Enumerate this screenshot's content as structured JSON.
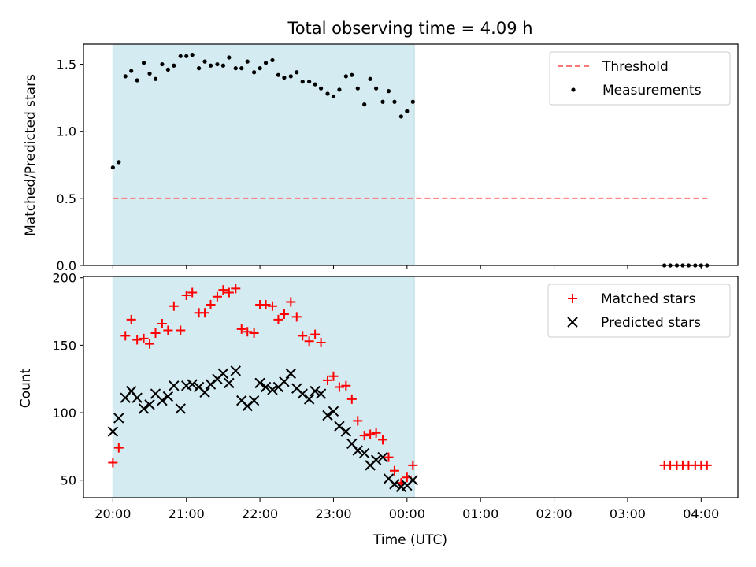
{
  "chart_data": {
    "type": "scatter",
    "title": "Total observing time = 4.09 h",
    "xlabel": "Time (UTC)",
    "x_ticks": [
      "20:00",
      "21:00",
      "22:00",
      "23:00",
      "00:00",
      "01:00",
      "02:00",
      "03:00",
      "04:00"
    ],
    "x_range_hours": [
      19.6,
      28.5
    ],
    "observing_window_hours": [
      20.0,
      24.1
    ],
    "colors": {
      "window": "#d4ebf1",
      "threshold": "#ff7777",
      "matched": "#ff0000",
      "predicted": "#000000",
      "measurement": "#000000"
    },
    "panels": [
      {
        "ylabel": "Matched/Predicted stars",
        "ylim": [
          0,
          1.65
        ],
        "yticks": [
          "0.0",
          "0.5",
          "1.0",
          "1.5"
        ],
        "threshold": 0.5,
        "threshold_x": [
          20.0,
          28.1
        ],
        "legend": {
          "position": "top-right",
          "threshold_label": "Threshold",
          "measurements_label": "Measurements"
        },
        "measurements": [
          [
            20.0,
            0.73
          ],
          [
            20.08,
            0.77
          ],
          [
            20.17,
            1.41
          ],
          [
            20.25,
            1.45
          ],
          [
            20.33,
            1.38
          ],
          [
            20.42,
            1.51
          ],
          [
            20.5,
            1.43
          ],
          [
            20.58,
            1.39
          ],
          [
            20.67,
            1.5
          ],
          [
            20.75,
            1.46
          ],
          [
            20.83,
            1.49
          ],
          [
            20.92,
            1.56
          ],
          [
            21.0,
            1.56
          ],
          [
            21.08,
            1.57
          ],
          [
            21.17,
            1.47
          ],
          [
            21.25,
            1.52
          ],
          [
            21.33,
            1.49
          ],
          [
            21.42,
            1.5
          ],
          [
            21.5,
            1.49
          ],
          [
            21.58,
            1.55
          ],
          [
            21.67,
            1.47
          ],
          [
            21.75,
            1.47
          ],
          [
            21.83,
            1.52
          ],
          [
            21.92,
            1.44
          ],
          [
            22.0,
            1.47
          ],
          [
            22.08,
            1.51
          ],
          [
            22.17,
            1.53
          ],
          [
            22.25,
            1.42
          ],
          [
            22.33,
            1.4
          ],
          [
            22.42,
            1.41
          ],
          [
            22.5,
            1.44
          ],
          [
            22.58,
            1.37
          ],
          [
            22.67,
            1.37
          ],
          [
            22.75,
            1.35
          ],
          [
            22.83,
            1.32
          ],
          [
            22.92,
            1.28
          ],
          [
            23.0,
            1.26
          ],
          [
            23.08,
            1.31
          ],
          [
            23.17,
            1.41
          ],
          [
            23.25,
            1.42
          ],
          [
            23.33,
            1.32
          ],
          [
            23.42,
            1.2
          ],
          [
            23.5,
            1.39
          ],
          [
            23.58,
            1.32
          ],
          [
            23.67,
            1.22
          ],
          [
            23.75,
            1.3
          ],
          [
            23.83,
            1.22
          ],
          [
            23.92,
            1.11
          ],
          [
            24.0,
            1.15
          ],
          [
            24.08,
            1.22
          ],
          [
            27.5,
            0.0
          ],
          [
            27.58,
            0.0
          ],
          [
            27.67,
            0.0
          ],
          [
            27.75,
            0.0
          ],
          [
            27.83,
            0.0
          ],
          [
            27.92,
            0.0
          ],
          [
            28.0,
            0.0
          ],
          [
            28.08,
            0.0
          ]
        ]
      },
      {
        "ylabel": "Count",
        "ylim": [
          37,
          201
        ],
        "yticks": [
          "50",
          "100",
          "150",
          "200"
        ],
        "legend": {
          "position": "top-right",
          "matched_label": "Matched stars",
          "predicted_label": "Predicted stars"
        },
        "matched": [
          [
            20.0,
            63
          ],
          [
            20.08,
            74
          ],
          [
            20.17,
            157
          ],
          [
            20.25,
            169
          ],
          [
            20.33,
            154
          ],
          [
            20.42,
            155
          ],
          [
            20.5,
            151
          ],
          [
            20.58,
            159
          ],
          [
            20.67,
            166
          ],
          [
            20.75,
            161
          ],
          [
            20.83,
            179
          ],
          [
            20.92,
            161
          ],
          [
            21.0,
            187
          ],
          [
            21.08,
            189
          ],
          [
            21.17,
            174
          ],
          [
            21.25,
            174
          ],
          [
            21.33,
            180
          ],
          [
            21.42,
            186
          ],
          [
            21.5,
            191
          ],
          [
            21.58,
            189
          ],
          [
            21.67,
            192
          ],
          [
            21.75,
            162
          ],
          [
            21.83,
            160
          ],
          [
            21.92,
            159
          ],
          [
            22.0,
            180
          ],
          [
            22.08,
            180
          ],
          [
            22.17,
            179
          ],
          [
            22.25,
            169
          ],
          [
            22.33,
            173
          ],
          [
            22.42,
            182
          ],
          [
            22.5,
            171
          ],
          [
            22.58,
            157
          ],
          [
            22.67,
            153
          ],
          [
            22.75,
            158
          ],
          [
            22.83,
            152
          ],
          [
            22.92,
            124
          ],
          [
            23.0,
            127
          ],
          [
            23.08,
            119
          ],
          [
            23.17,
            120
          ],
          [
            23.25,
            110
          ],
          [
            23.33,
            94
          ],
          [
            23.42,
            83
          ],
          [
            23.5,
            84
          ],
          [
            23.58,
            85
          ],
          [
            23.67,
            80
          ],
          [
            23.75,
            67
          ],
          [
            23.83,
            57
          ],
          [
            23.92,
            48
          ],
          [
            24.0,
            52
          ],
          [
            24.08,
            61
          ],
          [
            27.5,
            61
          ],
          [
            27.58,
            61
          ],
          [
            27.67,
            61
          ],
          [
            27.75,
            61
          ],
          [
            27.83,
            61
          ],
          [
            27.92,
            61
          ],
          [
            28.0,
            61
          ],
          [
            28.08,
            61
          ]
        ],
        "predicted": [
          [
            20.0,
            86
          ],
          [
            20.08,
            96
          ],
          [
            20.17,
            111
          ],
          [
            20.25,
            116
          ],
          [
            20.33,
            111
          ],
          [
            20.42,
            103
          ],
          [
            20.5,
            106
          ],
          [
            20.58,
            114
          ],
          [
            20.67,
            109
          ],
          [
            20.75,
            112
          ],
          [
            20.83,
            120
          ],
          [
            20.92,
            103
          ],
          [
            21.0,
            120
          ],
          [
            21.08,
            121
          ],
          [
            21.17,
            119
          ],
          [
            21.25,
            115
          ],
          [
            21.33,
            121
          ],
          [
            21.42,
            125
          ],
          [
            21.5,
            129
          ],
          [
            21.58,
            122
          ],
          [
            21.67,
            131
          ],
          [
            21.75,
            109
          ],
          [
            21.83,
            105
          ],
          [
            21.92,
            109
          ],
          [
            22.0,
            122
          ],
          [
            22.08,
            119
          ],
          [
            22.17,
            117
          ],
          [
            22.25,
            119
          ],
          [
            22.33,
            123
          ],
          [
            22.42,
            129
          ],
          [
            22.5,
            118
          ],
          [
            22.58,
            114
          ],
          [
            22.67,
            110
          ],
          [
            22.75,
            116
          ],
          [
            22.83,
            114
          ],
          [
            22.92,
            98
          ],
          [
            23.0,
            101
          ],
          [
            23.08,
            90
          ],
          [
            23.17,
            86
          ],
          [
            23.25,
            77
          ],
          [
            23.33,
            72
          ],
          [
            23.42,
            70
          ],
          [
            23.5,
            61
          ],
          [
            23.58,
            65
          ],
          [
            23.67,
            67
          ],
          [
            23.75,
            51
          ],
          [
            23.83,
            47
          ],
          [
            23.92,
            45
          ],
          [
            24.0,
            46
          ],
          [
            24.08,
            50
          ]
        ]
      }
    ]
  }
}
